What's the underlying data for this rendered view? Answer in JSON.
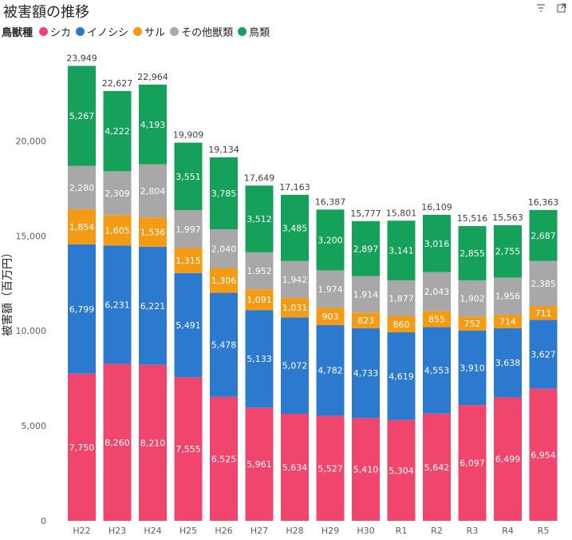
{
  "header": {
    "title": "被害額の推移",
    "icons": [
      "filter-icon",
      "focus-mode-icon"
    ]
  },
  "legend": {
    "title": "鳥獣種"
  },
  "chart_data": {
    "type": "bar",
    "stacked": true,
    "title": "被害額の推移",
    "categories": [
      "H22",
      "H23",
      "H24",
      "H25",
      "H26",
      "H27",
      "H28",
      "H29",
      "H30",
      "R1",
      "R2",
      "R3",
      "R4",
      "R5"
    ],
    "series": [
      {
        "name": "シカ",
        "color": "#f0456c",
        "values": [
          7750,
          8260,
          8210,
          7555,
          6525,
          5961,
          5634,
          5527,
          5410,
          5304,
          5642,
          6097,
          6499,
          6954
        ]
      },
      {
        "name": "イノシシ",
        "color": "#2c7ad0",
        "values": [
          6799,
          6231,
          6221,
          5491,
          5478,
          5133,
          5072,
          4782,
          4733,
          4619,
          4553,
          3910,
          3638,
          3627
        ]
      },
      {
        "name": "サル",
        "color": "#f39b15",
        "values": [
          1854,
          1605,
          1536,
          1315,
          1306,
          1091,
          1031,
          903,
          823,
          860,
          855,
          752,
          714,
          711
        ]
      },
      {
        "name": "その他獣類",
        "color": "#a9a7a8",
        "values": [
          2280,
          2309,
          2804,
          1997,
          2040,
          1952,
          1942,
          1974,
          1914,
          1877,
          2043,
          1902,
          1956,
          2385
        ]
      },
      {
        "name": "鳥類",
        "color": "#16a15a",
        "values": [
          5267,
          4222,
          4193,
          3551,
          3785,
          3512,
          3485,
          3200,
          2897,
          3141,
          3016,
          2855,
          2755,
          2687
        ]
      }
    ],
    "totals": [
      "23,949",
      "22,627",
      "22,964",
      "19,909",
      "19,134",
      "17,649",
      "17,163",
      "16,387",
      "15,777",
      "15,801",
      "16,109",
      "15,516",
      "15,563",
      "16,363"
    ],
    "ylabel": "被害額（百万円）",
    "xlabel": "",
    "ylim": [
      0,
      25000
    ],
    "yticks": [
      0,
      5000,
      10000,
      15000,
      20000
    ],
    "ytick_labels": [
      "0",
      "5,000",
      "10,000",
      "15,000",
      "20,000"
    ],
    "grid": false,
    "legend_position": "top-left",
    "data_labels": true
  }
}
